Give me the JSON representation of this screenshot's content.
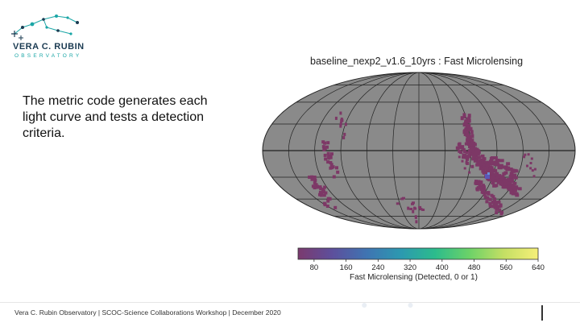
{
  "logo": {
    "name": "VERA C. RUBIN",
    "subtitle": "OBSERVATORY"
  },
  "body_text": "The metric code generates each light curve and tests a detection criteria.",
  "map": {
    "title": "baseline_nexp2_v1.6_10yrs : Fast Microlensing",
    "colorbar_label": "Fast Microlensing (Detected, 0 or 1)",
    "colorbar_ticks": [
      "80",
      "160",
      "240",
      "320",
      "400",
      "480",
      "560",
      "640"
    ]
  },
  "footer": {
    "text": "Vera C. Rubin Observatory  | SCOC-Science Collaborations Workshop |  December 2020"
  },
  "colors": {
    "sky_background": "#8a8a8a",
    "detection": "#7d3866",
    "hotspot": "#5a57b8",
    "colormap": [
      "#7b3a6e",
      "#5d4f9c",
      "#3f74b2",
      "#2c99b0",
      "#2cbc8c",
      "#6cd268",
      "#c4df64",
      "#f6ef78"
    ]
  }
}
